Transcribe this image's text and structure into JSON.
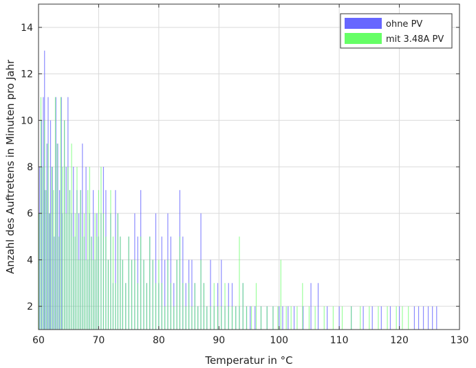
{
  "chart_data": {
    "type": "bar",
    "xlabel": "Temperatur in °C",
    "ylabel": "Anzahl des Auftretens in Minuten pro Jahr",
    "xlim": [
      60,
      130
    ],
    "ylim": [
      1,
      15
    ],
    "xticks": [
      60,
      70,
      80,
      90,
      100,
      110,
      120,
      130
    ],
    "yticks": [
      2,
      4,
      6,
      8,
      10,
      12,
      14
    ],
    "grid": true,
    "legend_position": "top-right",
    "series": [
      {
        "name": "ohne PV",
        "color": "#6666ff",
        "x": [
          60.2,
          60.5,
          60.8,
          61.0,
          61.1,
          61.4,
          61.6,
          61.8,
          62.0,
          62.3,
          62.6,
          62.9,
          63.2,
          63.5,
          63.8,
          64.0,
          64.3,
          64.6,
          64.9,
          65.2,
          65.5,
          65.8,
          66.1,
          66.4,
          66.7,
          67.0,
          67.3,
          67.6,
          67.9,
          68.2,
          68.5,
          68.8,
          69.1,
          69.4,
          69.7,
          70.0,
          70.4,
          70.8,
          71.2,
          71.6,
          72.0,
          72.4,
          72.8,
          73.2,
          73.6,
          74.0,
          74.5,
          75.0,
          75.5,
          76.0,
          76.5,
          77.0,
          77.5,
          78.0,
          78.5,
          79.0,
          79.5,
          80.0,
          80.5,
          81.0,
          81.5,
          82.0,
          82.5,
          83.0,
          83.5,
          84.0,
          84.5,
          85.0,
          85.5,
          86.0,
          86.5,
          87.0,
          87.5,
          88.0,
          88.6,
          89.2,
          89.8,
          90.4,
          91.0,
          91.6,
          92.2,
          92.8,
          93.4,
          94.0,
          94.6,
          95.2,
          96.0,
          97.0,
          98.0,
          99.0,
          100.0,
          100.6,
          101.5,
          102.5,
          104.0,
          105.3,
          106.5,
          108.0,
          110.0,
          112.0,
          114.0,
          115.5,
          117.0,
          118.5,
          120.0,
          122.5,
          123.2,
          124.0,
          124.8,
          125.5,
          126.2
        ],
        "values": [
          8,
          10,
          11,
          13,
          7,
          9,
          11,
          6,
          10,
          8,
          5,
          11,
          9,
          7,
          11,
          6,
          10,
          8,
          11,
          7,
          6,
          8,
          5,
          7,
          6,
          7,
          9,
          5,
          8,
          4,
          6,
          5,
          7,
          4,
          6,
          5,
          6,
          8,
          7,
          4,
          6,
          3,
          7,
          6,
          5,
          4,
          3,
          5,
          4,
          6,
          5,
          7,
          4,
          3,
          5,
          4,
          6,
          3,
          5,
          4,
          6,
          5,
          3,
          4,
          7,
          5,
          3,
          4,
          4,
          3,
          2,
          6,
          3,
          2,
          4,
          2,
          3,
          4,
          2,
          3,
          3,
          2,
          2,
          3,
          2,
          2,
          2,
          2,
          2,
          2,
          2,
          2,
          2,
          2,
          2,
          3,
          3,
          2,
          2,
          2,
          2,
          2,
          2,
          2,
          2,
          2,
          2,
          2,
          2,
          2,
          2
        ]
      },
      {
        "name": "mit 3.48A PV",
        "color": "#66ff66",
        "x": [
          60.1,
          60.4,
          60.7,
          61.0,
          61.3,
          61.6,
          61.9,
          62.2,
          62.5,
          62.8,
          63.1,
          63.4,
          63.7,
          64.0,
          64.3,
          64.6,
          64.9,
          65.2,
          65.5,
          65.8,
          66.1,
          66.4,
          66.7,
          67.0,
          67.3,
          67.6,
          67.9,
          68.2,
          68.5,
          68.8,
          69.1,
          69.4,
          69.7,
          70.0,
          70.4,
          70.8,
          71.2,
          71.6,
          72.0,
          72.4,
          72.8,
          73.2,
          73.6,
          74.0,
          74.5,
          75.0,
          75.5,
          76.0,
          76.5,
          77.0,
          77.5,
          78.0,
          78.5,
          79.0,
          79.5,
          80.0,
          80.5,
          81.0,
          81.5,
          82.0,
          82.5,
          83.0,
          83.5,
          84.0,
          84.5,
          85.0,
          85.5,
          86.0,
          86.5,
          87.0,
          87.5,
          88.0,
          88.6,
          89.2,
          89.8,
          90.4,
          91.0,
          91.6,
          92.2,
          92.8,
          93.4,
          94.0,
          94.6,
          95.4,
          96.2,
          97.0,
          98.0,
          99.0,
          99.8,
          100.3,
          101.2,
          102.0,
          103.0,
          103.9,
          105.0,
          106.0,
          107.5,
          109.0,
          110.5,
          112.0,
          113.5,
          115.0,
          116.5,
          118.0,
          119.5,
          120.5,
          121.5
        ],
        "values": [
          6,
          11,
          8,
          10,
          7,
          9,
          6,
          8,
          7,
          11,
          9,
          5,
          11,
          8,
          10,
          6,
          8,
          7,
          9,
          5,
          6,
          8,
          4,
          7,
          5,
          6,
          4,
          7,
          8,
          5,
          4,
          6,
          5,
          7,
          8,
          6,
          5,
          4,
          7,
          5,
          3,
          6,
          5,
          4,
          3,
          5,
          4,
          4,
          3,
          5,
          4,
          3,
          5,
          4,
          3,
          4,
          3,
          2,
          4,
          3,
          2,
          4,
          5,
          3,
          2,
          3,
          2,
          3,
          2,
          4,
          3,
          2,
          2,
          3,
          2,
          2,
          3,
          2,
          2,
          2,
          5,
          3,
          2,
          2,
          3,
          2,
          2,
          2,
          2,
          4,
          2,
          2,
          2,
          3,
          2,
          2,
          2,
          2,
          2,
          2,
          2,
          2,
          2,
          2,
          2,
          2,
          2
        ]
      }
    ]
  }
}
